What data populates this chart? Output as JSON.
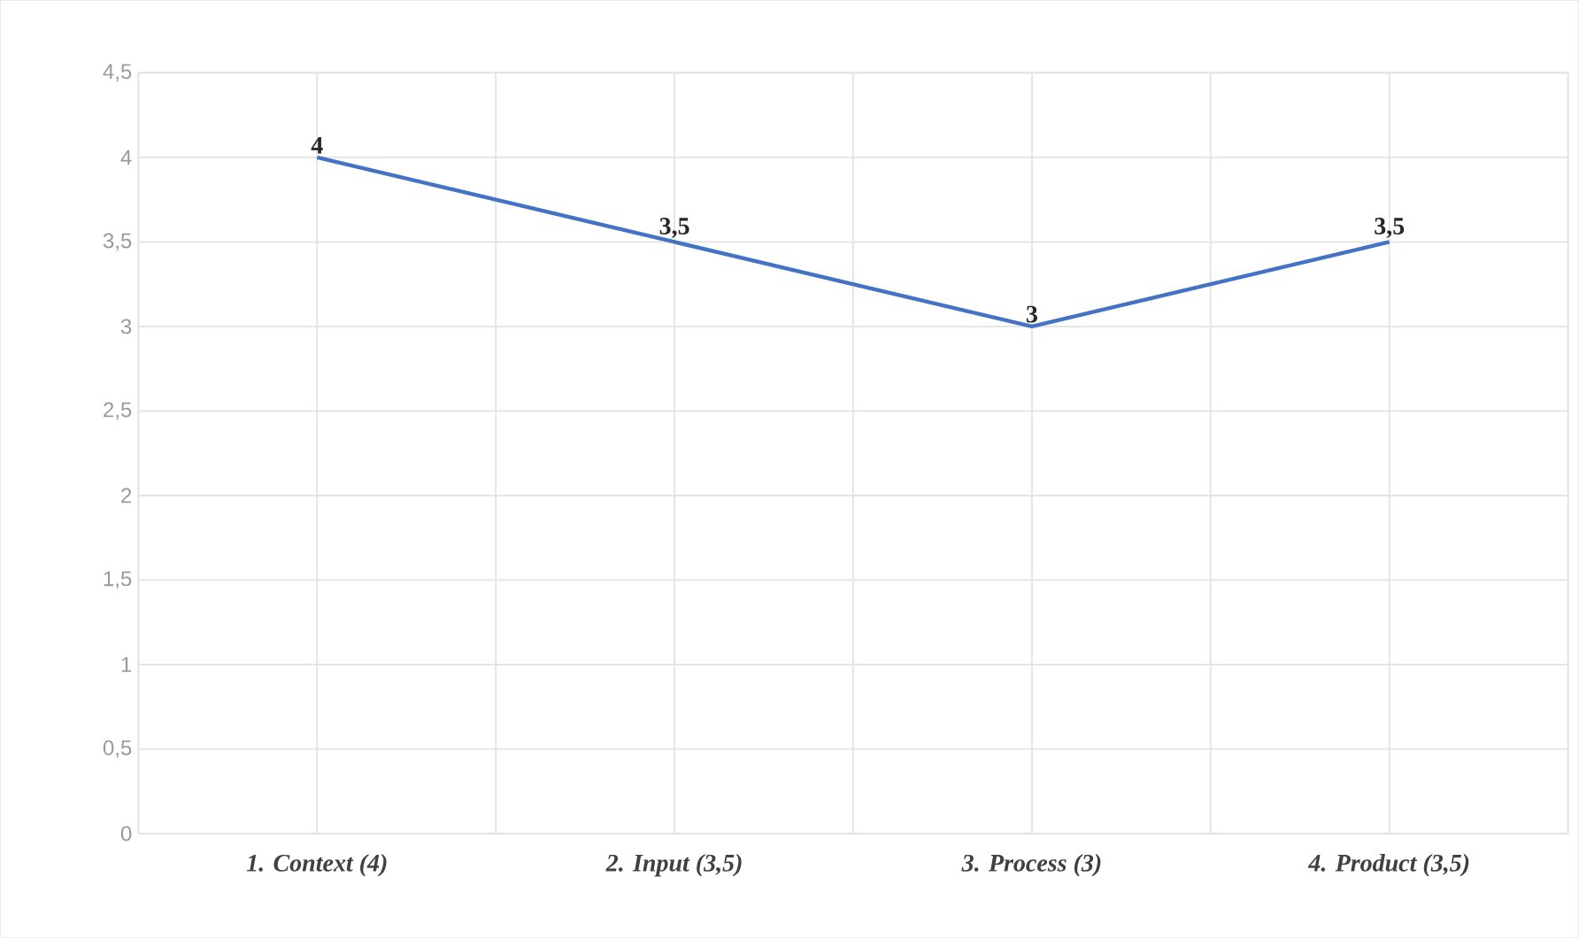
{
  "chart_data": {
    "type": "line",
    "categories": [
      "1. Context (4)",
      "2. Input (3,5)",
      "3. Process (3)",
      "4. Product (3,5)"
    ],
    "values": [
      4,
      3.5,
      3,
      3.5
    ],
    "value_labels": [
      "4",
      "3,5",
      "3",
      "3,5"
    ],
    "color": "#4472c4",
    "ylim": [
      0,
      4.5
    ],
    "yticks": [
      0,
      {
        "value": 0.5,
        "label": "0,5"
      },
      1,
      {
        "value": 1.5,
        "label": "1,5"
      },
      2,
      {
        "value": 2.5,
        "label": "2,5"
      },
      3,
      {
        "value": 3.5,
        "label": "3,5"
      },
      4,
      {
        "value": 4.5,
        "label": "4,5"
      }
    ],
    "grid": true,
    "marker": "none",
    "line_style": "solid"
  }
}
